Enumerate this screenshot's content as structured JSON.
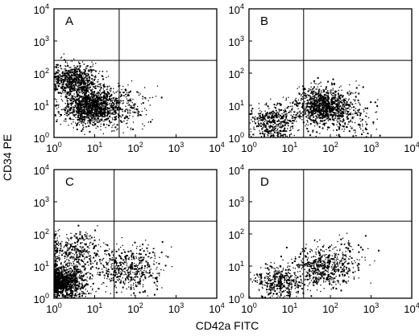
{
  "chart_data": {
    "type": "scatter",
    "xlabel": "CD42a FITC",
    "ylabel": "CD34 PE",
    "x_scale": "log",
    "y_scale": "log",
    "xlim": [
      1,
      10000
    ],
    "ylim": [
      1,
      10000
    ],
    "tick_values": [
      1,
      10,
      100,
      1000,
      10000
    ],
    "tick_base": "10",
    "tick_exponents": [
      "0",
      "1",
      "2",
      "3",
      "4"
    ],
    "grid": false,
    "panels": [
      {
        "label": "A",
        "gate": {
          "x": 40,
          "y": 250
        },
        "clusters": [
          {
            "x": 3,
            "y": 60,
            "n": 700
          },
          {
            "x": 8,
            "y": 9,
            "n": 1300
          },
          {
            "x": 50,
            "y": 8,
            "n": 220
          }
        ]
      },
      {
        "label": "B",
        "gate": {
          "x": 22,
          "y": 250
        },
        "clusters": [
          {
            "x": 4,
            "y": 3,
            "n": 450
          },
          {
            "x": 70,
            "y": 9,
            "n": 1100
          },
          {
            "x": 300,
            "y": 4,
            "n": 150
          }
        ]
      },
      {
        "label": "C",
        "gate": {
          "x": 30,
          "y": 250
        },
        "clusters": [
          {
            "x": 1.6,
            "y": 3,
            "n": 1100
          },
          {
            "x": 3,
            "y": 30,
            "n": 350
          },
          {
            "x": 60,
            "y": 8,
            "n": 500
          }
        ]
      },
      {
        "label": "D",
        "gate": {
          "x": 22,
          "y": 250
        },
        "clusters": [
          {
            "x": 5,
            "y": 3,
            "n": 380
          },
          {
            "x": 55,
            "y": 8,
            "n": 480
          },
          {
            "x": 200,
            "y": 20,
            "n": 120
          }
        ]
      }
    ]
  }
}
